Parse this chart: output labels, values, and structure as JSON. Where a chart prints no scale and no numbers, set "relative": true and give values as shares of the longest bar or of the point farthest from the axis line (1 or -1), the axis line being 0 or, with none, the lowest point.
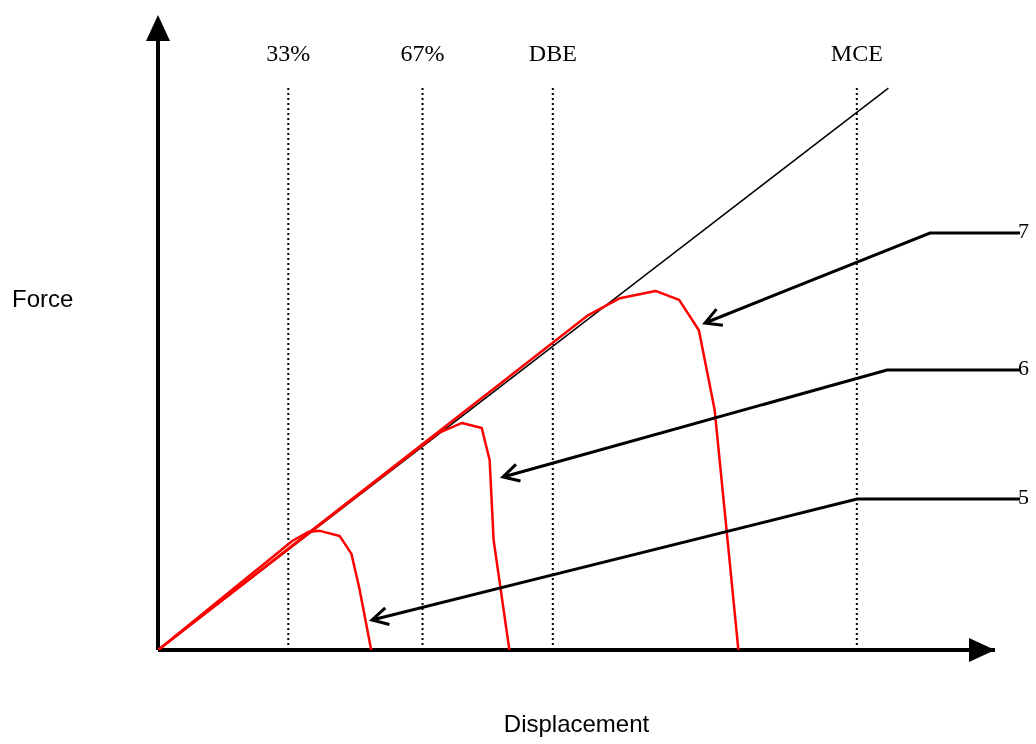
{
  "chart_data": {
    "type": "line",
    "relative": true,
    "xlabel": "Displacement",
    "ylabel": "Force",
    "legend": false,
    "marker": "none",
    "line_style": "solid",
    "xlim": [
      0,
      212
    ],
    "xticks": [
      {
        "value": 33,
        "label": "33%"
      },
      {
        "value": 67,
        "label": "67%"
      },
      {
        "value": 100,
        "label": "DBE"
      },
      {
        "value": 177,
        "label": "MCE"
      }
    ],
    "series": [
      {
        "color": "#000000",
        "x": [
          0,
          185
        ],
        "values": [
          0,
          1
        ]
      },
      {
        "color": "#ff0000",
        "x": [
          0,
          34,
          38,
          41,
          46,
          49,
          51,
          54
        ],
        "values": [
          0,
          0.194,
          0.21,
          0.212,
          0.203,
          0.171,
          0.11,
          0
        ]
      },
      {
        "color": "#ff0000",
        "x": [
          0,
          71,
          77,
          82,
          84,
          85,
          89
        ],
        "values": [
          0,
          0.386,
          0.404,
          0.395,
          0.338,
          0.196,
          0
        ]
      },
      {
        "color": "#ff0000",
        "x": [
          0,
          109,
          117,
          126,
          132,
          137,
          141,
          144,
          147
        ],
        "values": [
          0,
          0.596,
          0.626,
          0.639,
          0.623,
          0.569,
          0.427,
          0.214,
          0
        ]
      }
    ],
    "ref_lines": [
      {
        "axis": "x",
        "value": 33,
        "color": "#000000",
        "line_style": "dotted"
      },
      {
        "axis": "x",
        "value": 67,
        "color": "#000000",
        "line_style": "dotted"
      },
      {
        "axis": "x",
        "value": 100,
        "color": "#000000",
        "line_style": "dotted"
      },
      {
        "axis": "x",
        "value": 177,
        "color": "#000000",
        "line_style": "dotted"
      }
    ],
    "annotations": [
      "7",
      "6",
      "5"
    ]
  }
}
